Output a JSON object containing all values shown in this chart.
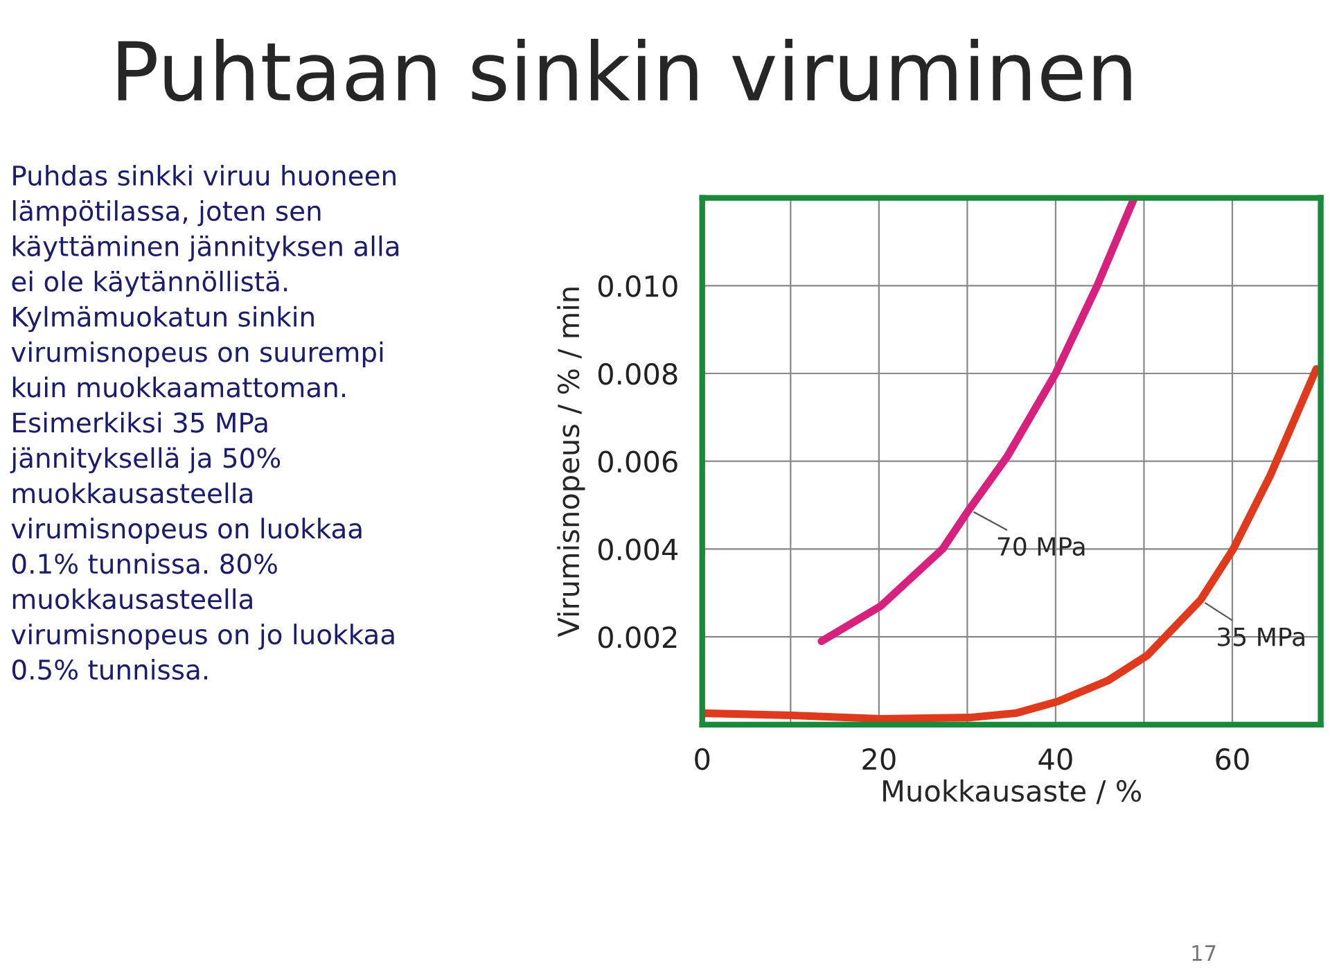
{
  "chart_data": {
    "type": "line",
    "title": "Puhtaan sinkin viruminen",
    "xlabel": "Muokkausaste / %",
    "ylabel": "Virumisnopeus / % / min",
    "series": [
      {
        "name": "70 MPa",
        "color": "#d6217f",
        "x": [
          13.5,
          20.2,
          27.2,
          30.2,
          34.5,
          40,
          44.7,
          48.9
        ],
        "values": [
          0.0019,
          0.0027,
          0.004,
          0.0049,
          0.0061,
          0.008,
          0.01,
          0.012
        ]
      },
      {
        "name": "35 MPa",
        "color": "#e03a1e",
        "x": [
          0,
          10.2,
          20.2,
          30.2,
          35.5,
          40.3,
          45.9,
          50.4,
          56.4,
          60.1,
          64.3,
          69.5
        ],
        "values": [
          0.00026,
          0.00021,
          0.00013,
          0.00016,
          0.00026,
          0.00053,
          0.001,
          0.00158,
          0.00284,
          0.004,
          0.00568,
          0.0081
        ]
      }
    ],
    "xlim": [
      0,
      70
    ],
    "xticks": [
      0,
      {
        "value": 10,
        "label": null
      },
      20,
      {
        "value": 30,
        "label": null
      },
      40,
      {
        "value": 50,
        "label": null
      },
      60,
      {
        "value": 70,
        "label": null
      }
    ],
    "ylim": [
      0,
      0.012
    ],
    "yticks": [
      {
        "value": 0.002,
        "label": "0.002"
      },
      {
        "value": 0.004,
        "label": "0.004"
      },
      {
        "value": 0.006,
        "label": "0.006"
      },
      {
        "value": 0.008,
        "label": "0.008"
      },
      {
        "value": 0.01,
        "label": "0.010"
      },
      {
        "value": 0.012,
        "label": null
      }
    ],
    "grid": true,
    "marker": "none",
    "line_style": "solid",
    "annotations": [
      "Puhdas sinkki viruu huoneen\nlämpötilassa, joten sen\nkäyttäminen jännityksen alla\nei ole käytännöllistä.\nKylmämuokatun sinkin\nvirumisnopeus on suurempi\nkuin muokkaamattoman.\nEsimerkiksi 35 MPa\njännityksellä ja 50%\nmuokkausasteella\nvirumisnopeus on luokkaa\n0.1% tunnissa. 80%\nmuokkausasteella\nvirumisnopeus on jo luokkaa\n0.5% tunnissa.",
      "17"
    ]
  }
}
